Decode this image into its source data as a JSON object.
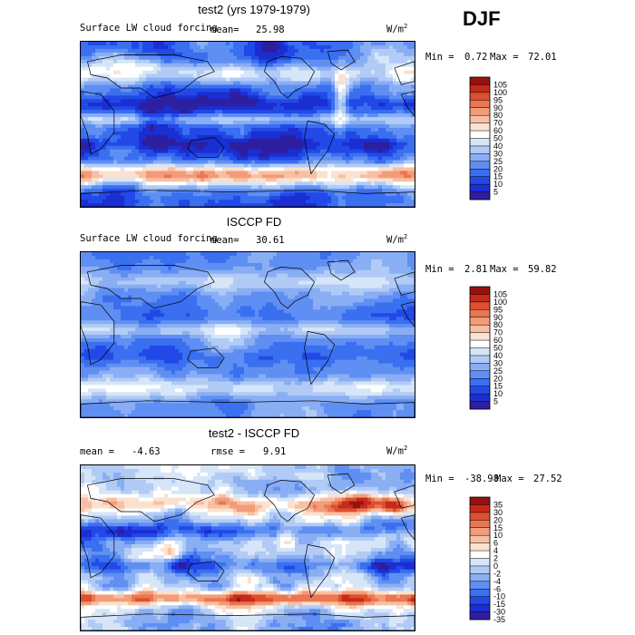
{
  "season": "DJF",
  "colors": {
    "model_obs_scale": [
      "#2d1fa0",
      "#1a2ed1",
      "#2249e8",
      "#3a6ff0",
      "#5f8ff2",
      "#8aaef4",
      "#b1cbf6",
      "#d6e6f8",
      "#ffffff",
      "#fbe1cf",
      "#f7c0a3",
      "#f29c79",
      "#ea7652",
      "#dc4f2f",
      "#c52a1a",
      "#9a1010"
    ],
    "diff_scale": [
      "#2d1fa0",
      "#1a2ed1",
      "#2249e8",
      "#3a6ff0",
      "#5f8ff2",
      "#8aaef4",
      "#b1cbf6",
      "#d6e6f8",
      "#ffffff",
      "#fbe1cf",
      "#f7c0a3",
      "#f29c79",
      "#ea7652",
      "#dc4f2f",
      "#c52a1a",
      "#9a1010"
    ]
  },
  "panels": [
    {
      "title": "test2 (yrs 1979-1979)",
      "variable": "Surface LW cloud forcing",
      "stat1_label": "mean=",
      "stat1_value": "25.98",
      "stat2_label": "",
      "stat2_value": "",
      "units_base": "W/m",
      "units_exp": "2",
      "min_label": "Min =",
      "min_value": "0.72",
      "max_label": "Max =",
      "max_value": "72.01",
      "cbar_levels": [
        "105",
        "100",
        "95",
        "90",
        "80",
        "70",
        "60",
        "50",
        "40",
        "30",
        "25",
        "20",
        "15",
        "10",
        "5"
      ]
    },
    {
      "title": "ISCCP FD",
      "variable": "Surface LW cloud forcing",
      "stat1_label": "mean=",
      "stat1_value": "30.61",
      "stat2_label": "",
      "stat2_value": "",
      "units_base": "W/m",
      "units_exp": "2",
      "min_label": "Min =",
      "min_value": "2.81",
      "max_label": "Max =",
      "max_value": "59.82",
      "cbar_levels": [
        "105",
        "100",
        "95",
        "90",
        "80",
        "70",
        "60",
        "50",
        "40",
        "30",
        "25",
        "20",
        "15",
        "10",
        "5"
      ]
    },
    {
      "title": "test2 - ISCCP FD",
      "variable": "",
      "stat1_label": "mean =",
      "stat1_value": "-4.63",
      "stat2_label": "rmse =",
      "stat2_value": "9.91",
      "units_base": "W/m",
      "units_exp": "2",
      "min_label": "Min =",
      "min_value": "-38.98",
      "max_label": "Max =",
      "max_value": "27.52",
      "cbar_levels": [
        "35",
        "30",
        "20",
        "15",
        "10",
        "6",
        "4",
        "2",
        "0",
        "-2",
        "-4",
        "-6",
        "-10",
        "-15",
        "-30",
        "-35"
      ]
    }
  ],
  "chart_data": [
    {
      "type": "heatmap",
      "title": "test2 (yrs 1979-1979)",
      "subtitle": "Surface LW cloud forcing",
      "units": "W/m2",
      "mean": 25.98,
      "min": 0.72,
      "max": 72.01,
      "contour_levels": [
        5,
        10,
        15,
        20,
        25,
        30,
        40,
        50,
        60,
        70,
        80,
        90,
        95,
        100,
        105
      ]
    },
    {
      "type": "heatmap",
      "title": "ISCCP FD",
      "subtitle": "Surface LW cloud forcing",
      "units": "W/m2",
      "mean": 30.61,
      "min": 2.81,
      "max": 59.82,
      "contour_levels": [
        5,
        10,
        15,
        20,
        25,
        30,
        40,
        50,
        60,
        70,
        80,
        90,
        95,
        100,
        105
      ]
    },
    {
      "type": "heatmap",
      "title": "test2 - ISCCP FD",
      "units": "W/m2",
      "mean": -4.63,
      "rmse": 9.91,
      "min": -38.98,
      "max": 27.52,
      "contour_levels": [
        -35,
        -30,
        -15,
        -10,
        -6,
        -4,
        -2,
        0,
        2,
        4,
        6,
        10,
        15,
        20,
        30,
        35
      ]
    }
  ]
}
